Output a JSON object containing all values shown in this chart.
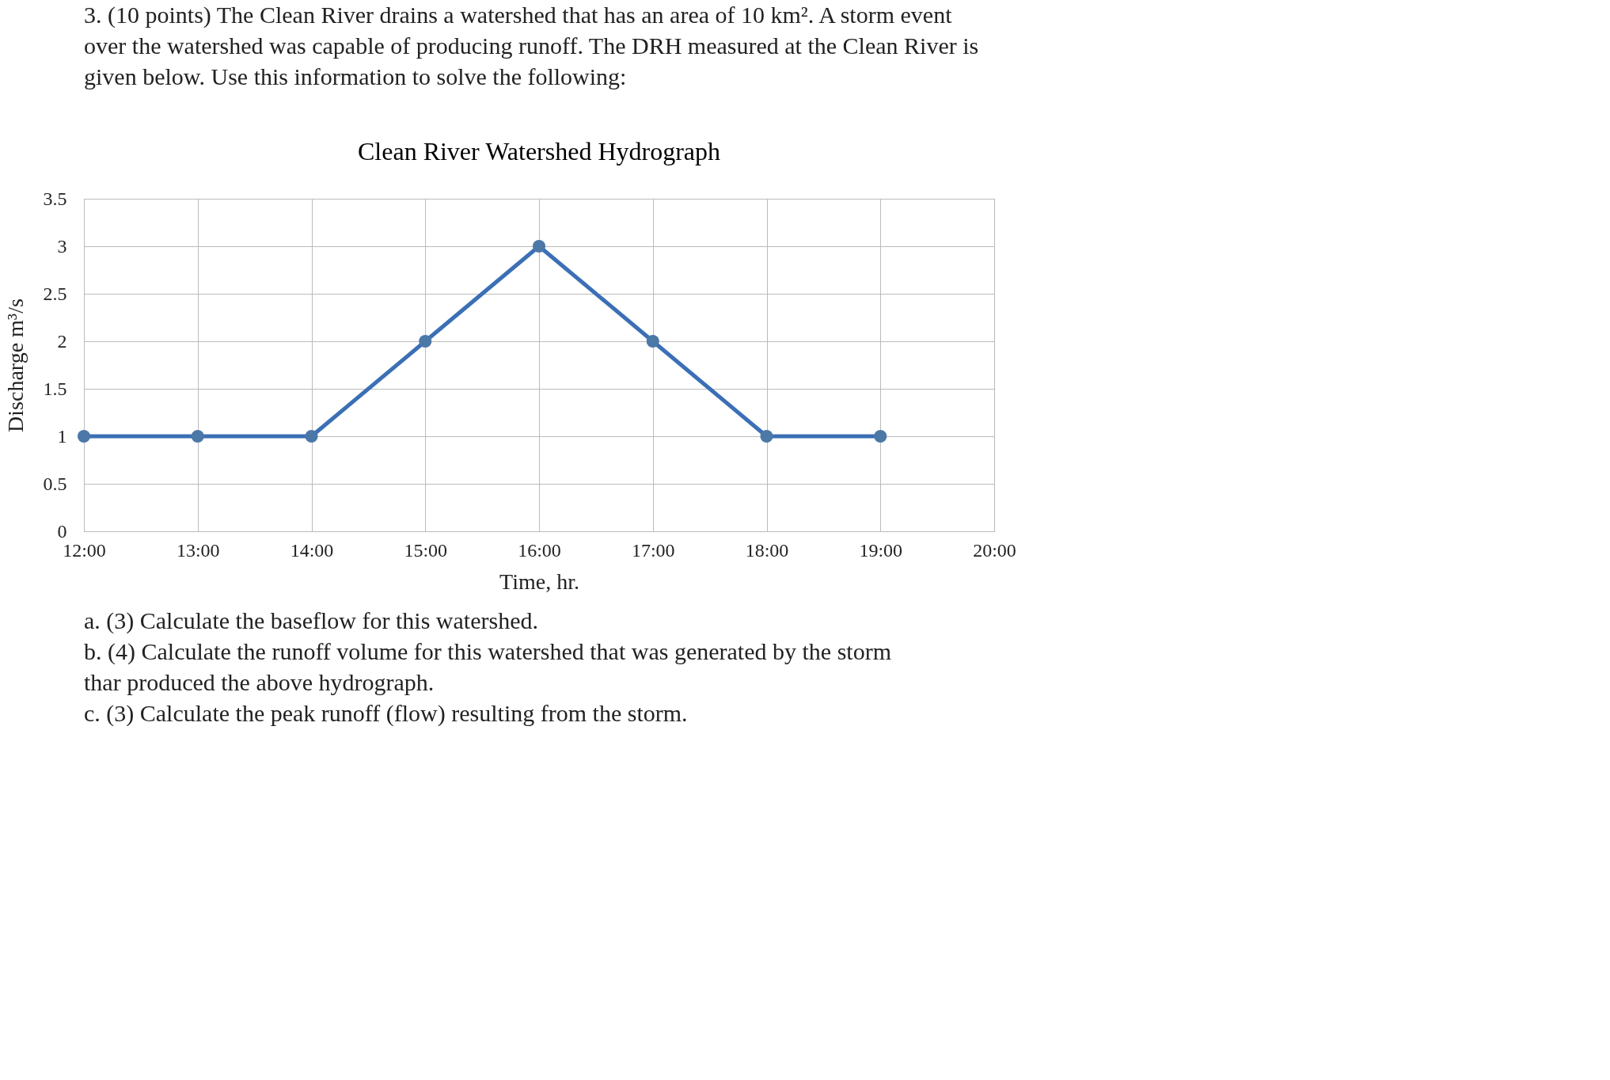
{
  "chart_data": {
    "type": "line",
    "title": "Clean River Watershed Hydrograph",
    "xlabel": "Time, hr.",
    "ylabel": "Discharge m³/s",
    "x": [
      12,
      13,
      14,
      15,
      16,
      17,
      18,
      19
    ],
    "series": [
      {
        "color": "#3b6fb6",
        "values": [
          1,
          1,
          1,
          2,
          3,
          2,
          1,
          1
        ]
      }
    ],
    "xlim": [
      12,
      20
    ],
    "xticks": [
      {
        "value": 12,
        "label": "12:00"
      },
      {
        "value": 13,
        "label": "13:00"
      },
      {
        "value": 14,
        "label": "14:00"
      },
      {
        "value": 15,
        "label": "15:00"
      },
      {
        "value": 16,
        "label": "16:00"
      },
      {
        "value": 17,
        "label": "17:00"
      },
      {
        "value": 18,
        "label": "18:00"
      },
      {
        "value": 19,
        "label": "19:00"
      },
      {
        "value": 20,
        "label": "20:00"
      }
    ],
    "ylim": [
      0,
      3.5
    ],
    "yticks": [
      0,
      0.5,
      1,
      1.5,
      2,
      2.5,
      3,
      3.5
    ],
    "grid": true,
    "marker": "circle",
    "line_style": "solid",
    "annotations": [
      "3. (10 points) The Clean River drains a watershed that has an area of 10 km². A storm event over the watershed was capable of producing runoff. The DRH measured at the Clean River is given below. Use this information to solve the following:",
      "a. (3) Calculate the baseflow for this watershed.",
      "b. (4) Calculate the runoff volume for this watershed that was generated by the storm thar produced the above hydrograph.",
      "c. (3) Calculate the peak runoff (flow) resulting from the storm."
    ]
  }
}
